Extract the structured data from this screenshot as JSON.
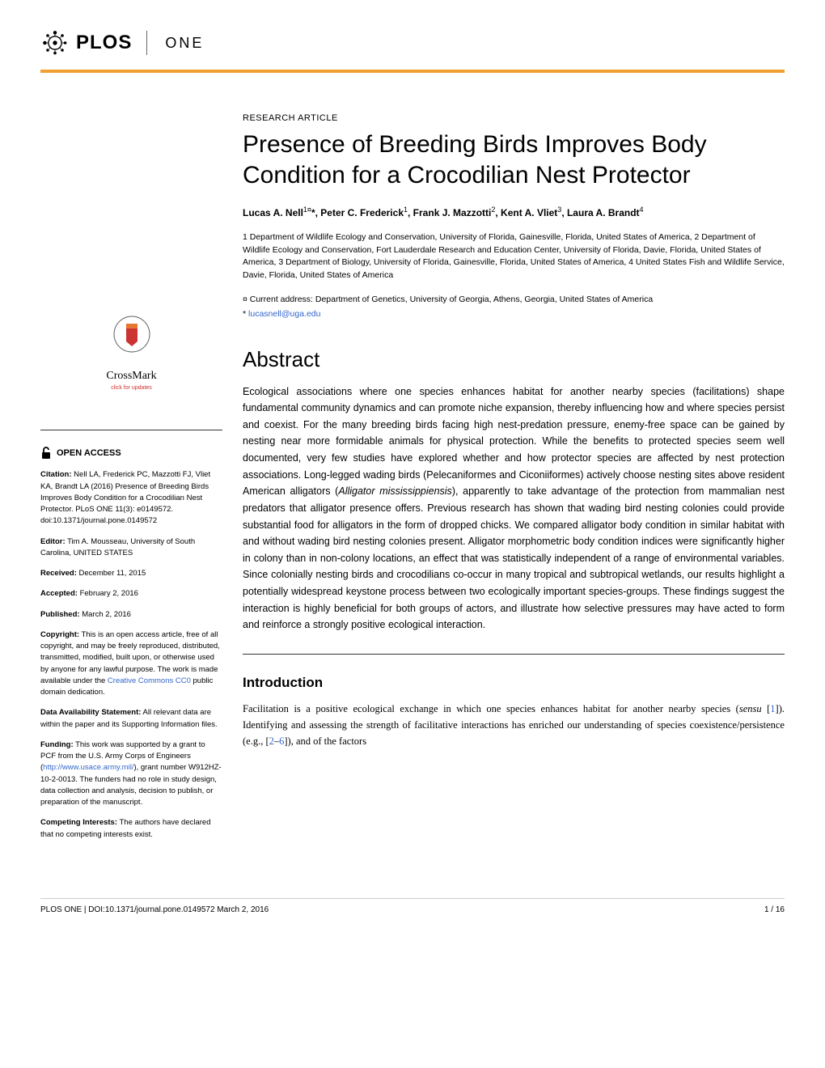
{
  "journal": {
    "name_prefix": "PLOS",
    "name_suffix": "ONE"
  },
  "article": {
    "type": "RESEARCH ARTICLE",
    "title": "Presence of Breeding Birds Improves Body Condition for a Crocodilian Nest Protector",
    "authors_html": "Lucas A. Nell<sup>1¤</sup>*, Peter C. Frederick<sup>1</sup>, Frank J. Mazzotti<sup>2</sup>, Kent A. Vliet<sup>3</sup>, Laura A. Brandt<sup>4</sup>",
    "affiliations": "1 Department of Wildlife Ecology and Conservation, University of Florida, Gainesville, Florida, United States of America, 2 Department of Wildlife Ecology and Conservation, Fort Lauderdale Research and Education Center, University of Florida, Davie, Florida, United States of America, 3 Department of Biology, University of Florida, Gainesville, Florida, United States of America, 4 United States Fish and Wildlife Service, Davie, Florida, United States of America",
    "current_address": "¤ Current address: Department of Genetics, University of Georgia, Athens, Georgia, United States of America",
    "email_prefix": "* ",
    "email": "lucasnell@uga.edu"
  },
  "abstract": {
    "heading": "Abstract",
    "text": "Ecological associations where one species enhances habitat for another nearby species (facilitations) shape fundamental community dynamics and can promote niche expansion, thereby influencing how and where species persist and coexist. For the many breeding birds facing high nest-predation pressure, enemy-free space can be gained by nesting near more formidable animals for physical protection. While the benefits to protected species seem well documented, very few studies have explored whether and how protector species are affected by nest protection associations. Long-legged wading birds (Pelecaniformes and Ciconiiformes) actively choose nesting sites above resident American alligators (Alligator mississippiensis), apparently to take advantage of the protection from mammalian nest predators that alligator presence offers. Previous research has shown that wading bird nesting colonies could provide substantial food for alligators in the form of dropped chicks. We compared alligator body condition in similar habitat with and without wading bird nesting colonies present. Alligator morphometric body condition indices were significantly higher in colony than in non-colony locations, an effect that was statistically independent of a range of environmental variables. Since colonially nesting birds and crocodilians co-occur in many tropical and subtropical wetlands, our results highlight a potentially widespread keystone process between two ecologically important species-groups. These findings suggest the interaction is highly beneficial for both groups of actors, and illustrate how selective pressures may have acted to form and reinforce a strongly positive ecological interaction."
  },
  "introduction": {
    "heading": "Introduction",
    "text_parts": {
      "p1": "Facilitation is a positive ecological exchange in which one species enhances habitat for another nearby species (",
      "p2": "sensu",
      "p3": " [",
      "ref1": "1",
      "p4": "]). Identifying and assessing the strength of facilitative interactions has enriched our understanding of species coexistence/persistence (e.g., [",
      "ref2": "2",
      "dash": "–",
      "ref6": "6",
      "p5": "]), and of the factors"
    }
  },
  "crossmark": {
    "label": "CrossMark",
    "sublabel": "click for updates"
  },
  "sidebar": {
    "open_access": "OPEN ACCESS",
    "citation_label": "Citation:",
    "citation_text": " Nell LA, Frederick PC, Mazzotti FJ, Vliet KA, Brandt LA (2016) Presence of Breeding Birds Improves Body Condition for a Crocodilian Nest Protector. PLoS ONE 11(3): e0149572. doi:10.1371/journal.pone.0149572",
    "editor_label": "Editor:",
    "editor_text": " Tim A. Mousseau, University of South Carolina, UNITED STATES",
    "received_label": "Received:",
    "received_text": " December 11, 2015",
    "accepted_label": "Accepted:",
    "accepted_text": " February 2, 2016",
    "published_label": "Published:",
    "published_text": " March 2, 2016",
    "copyright_label": "Copyright:",
    "copyright_text_1": " This is an open access article, free of all copyright, and may be freely reproduced, distributed, transmitted, modified, built upon, or otherwise used by anyone for any lawful purpose. The work is made available under the ",
    "copyright_link": "Creative Commons CC0",
    "copyright_text_2": " public domain dedication.",
    "data_label": "Data Availability Statement:",
    "data_text": " All relevant data are within the paper and its Supporting Information files.",
    "funding_label": "Funding:",
    "funding_text_1": " This work was supported by a grant to PCF from the U.S. Army Corps of Engineers (",
    "funding_link": "http://www.usace.army.mil/",
    "funding_text_2": "), grant number W912HZ-10-2-0013. The funders had no role in study design, data collection and analysis, decision to publish, or preparation of the manuscript.",
    "competing_label": "Competing Interests:",
    "competing_text": " The authors have declared that no competing interests exist."
  },
  "footer": {
    "left": "PLOS ONE | DOI:10.1371/journal.pone.0149572    March 2, 2016",
    "right": "1 / 16"
  },
  "colors": {
    "accent": "#f0a030",
    "link": "#3366cc",
    "crossmark_red": "#cc3333",
    "crossmark_orange": "#e67733"
  }
}
